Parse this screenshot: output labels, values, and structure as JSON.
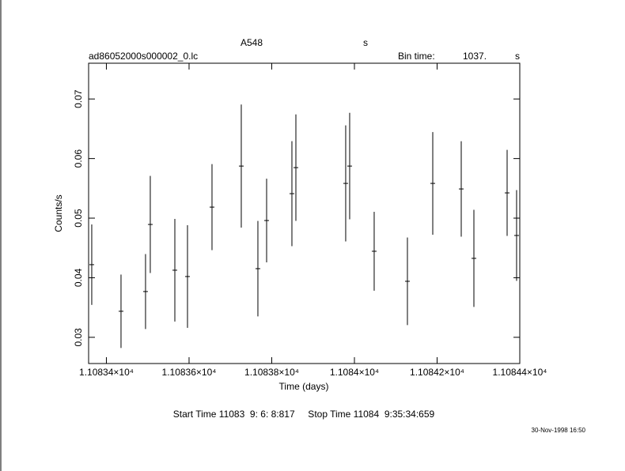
{
  "chart_data": {
    "type": "errorbar",
    "title": "A548",
    "title_unit": "s",
    "subtitle": "ad86052000s000002_0.lc",
    "bin_label": "Bin time:",
    "bin_value": "1037.",
    "bin_unit": "s",
    "x_label": "Time (days)",
    "y_label": "Counts/s",
    "footer": "Start Time 11083  9: 6: 8:817     Stop Time 11084  9:35:34:659",
    "date_stamp": "30-Nov-1998 16:50",
    "color": "#000000",
    "x": [
      11083.3646,
      11083.4354,
      11083.4947,
      11083.5062,
      11083.5656,
      11083.5962,
      11083.6555,
      11083.7263,
      11083.7665,
      11083.7876,
      11083.8488,
      11083.8584,
      11083.9789,
      11083.9885,
      11084.0478,
      11084.1282,
      11084.1895,
      11084.2584,
      11084.289,
      11084.3694,
      11084.3923
    ],
    "values": [
      0.04219,
      0.03437,
      0.03768,
      0.04894,
      0.04126,
      0.0402,
      0.05185,
      0.05874,
      0.04152,
      0.0496,
      0.05411,
      0.05848,
      0.05583,
      0.05874,
      0.04444,
      0.0394,
      0.05583,
      0.0549,
      0.04325,
      0.05424,
      0.04709
    ],
    "errors": [
      0.00675,
      0.00616,
      0.00629,
      0.00815,
      0.00861,
      0.00861,
      0.00722,
      0.01033,
      0.00801,
      0.00702,
      0.00881,
      0.00894,
      0.00974,
      0.00894,
      0.00662,
      0.00735,
      0.00861,
      0.00801,
      0.00815,
      0.00722,
      0.00762
    ],
    "xlim": [
      11083.357,
      11084.4
    ],
    "ylim": [
      0.0256,
      0.076
    ],
    "xticks": [
      {
        "value": 11083.4,
        "label": "1.10834×10⁴"
      },
      {
        "value": 11083.6,
        "label": "1.10836×10⁴"
      },
      {
        "value": 11083.8,
        "label": "1.10838×10⁴"
      },
      {
        "value": 11084.0,
        "label": "1.1084×10⁴"
      },
      {
        "value": 11084.2,
        "label": "1.10842×10⁴"
      },
      {
        "value": 11084.4,
        "label": "1.10844×10⁴"
      }
    ],
    "yticks": [
      0.03,
      0.04,
      0.05,
      0.06,
      0.07
    ]
  }
}
